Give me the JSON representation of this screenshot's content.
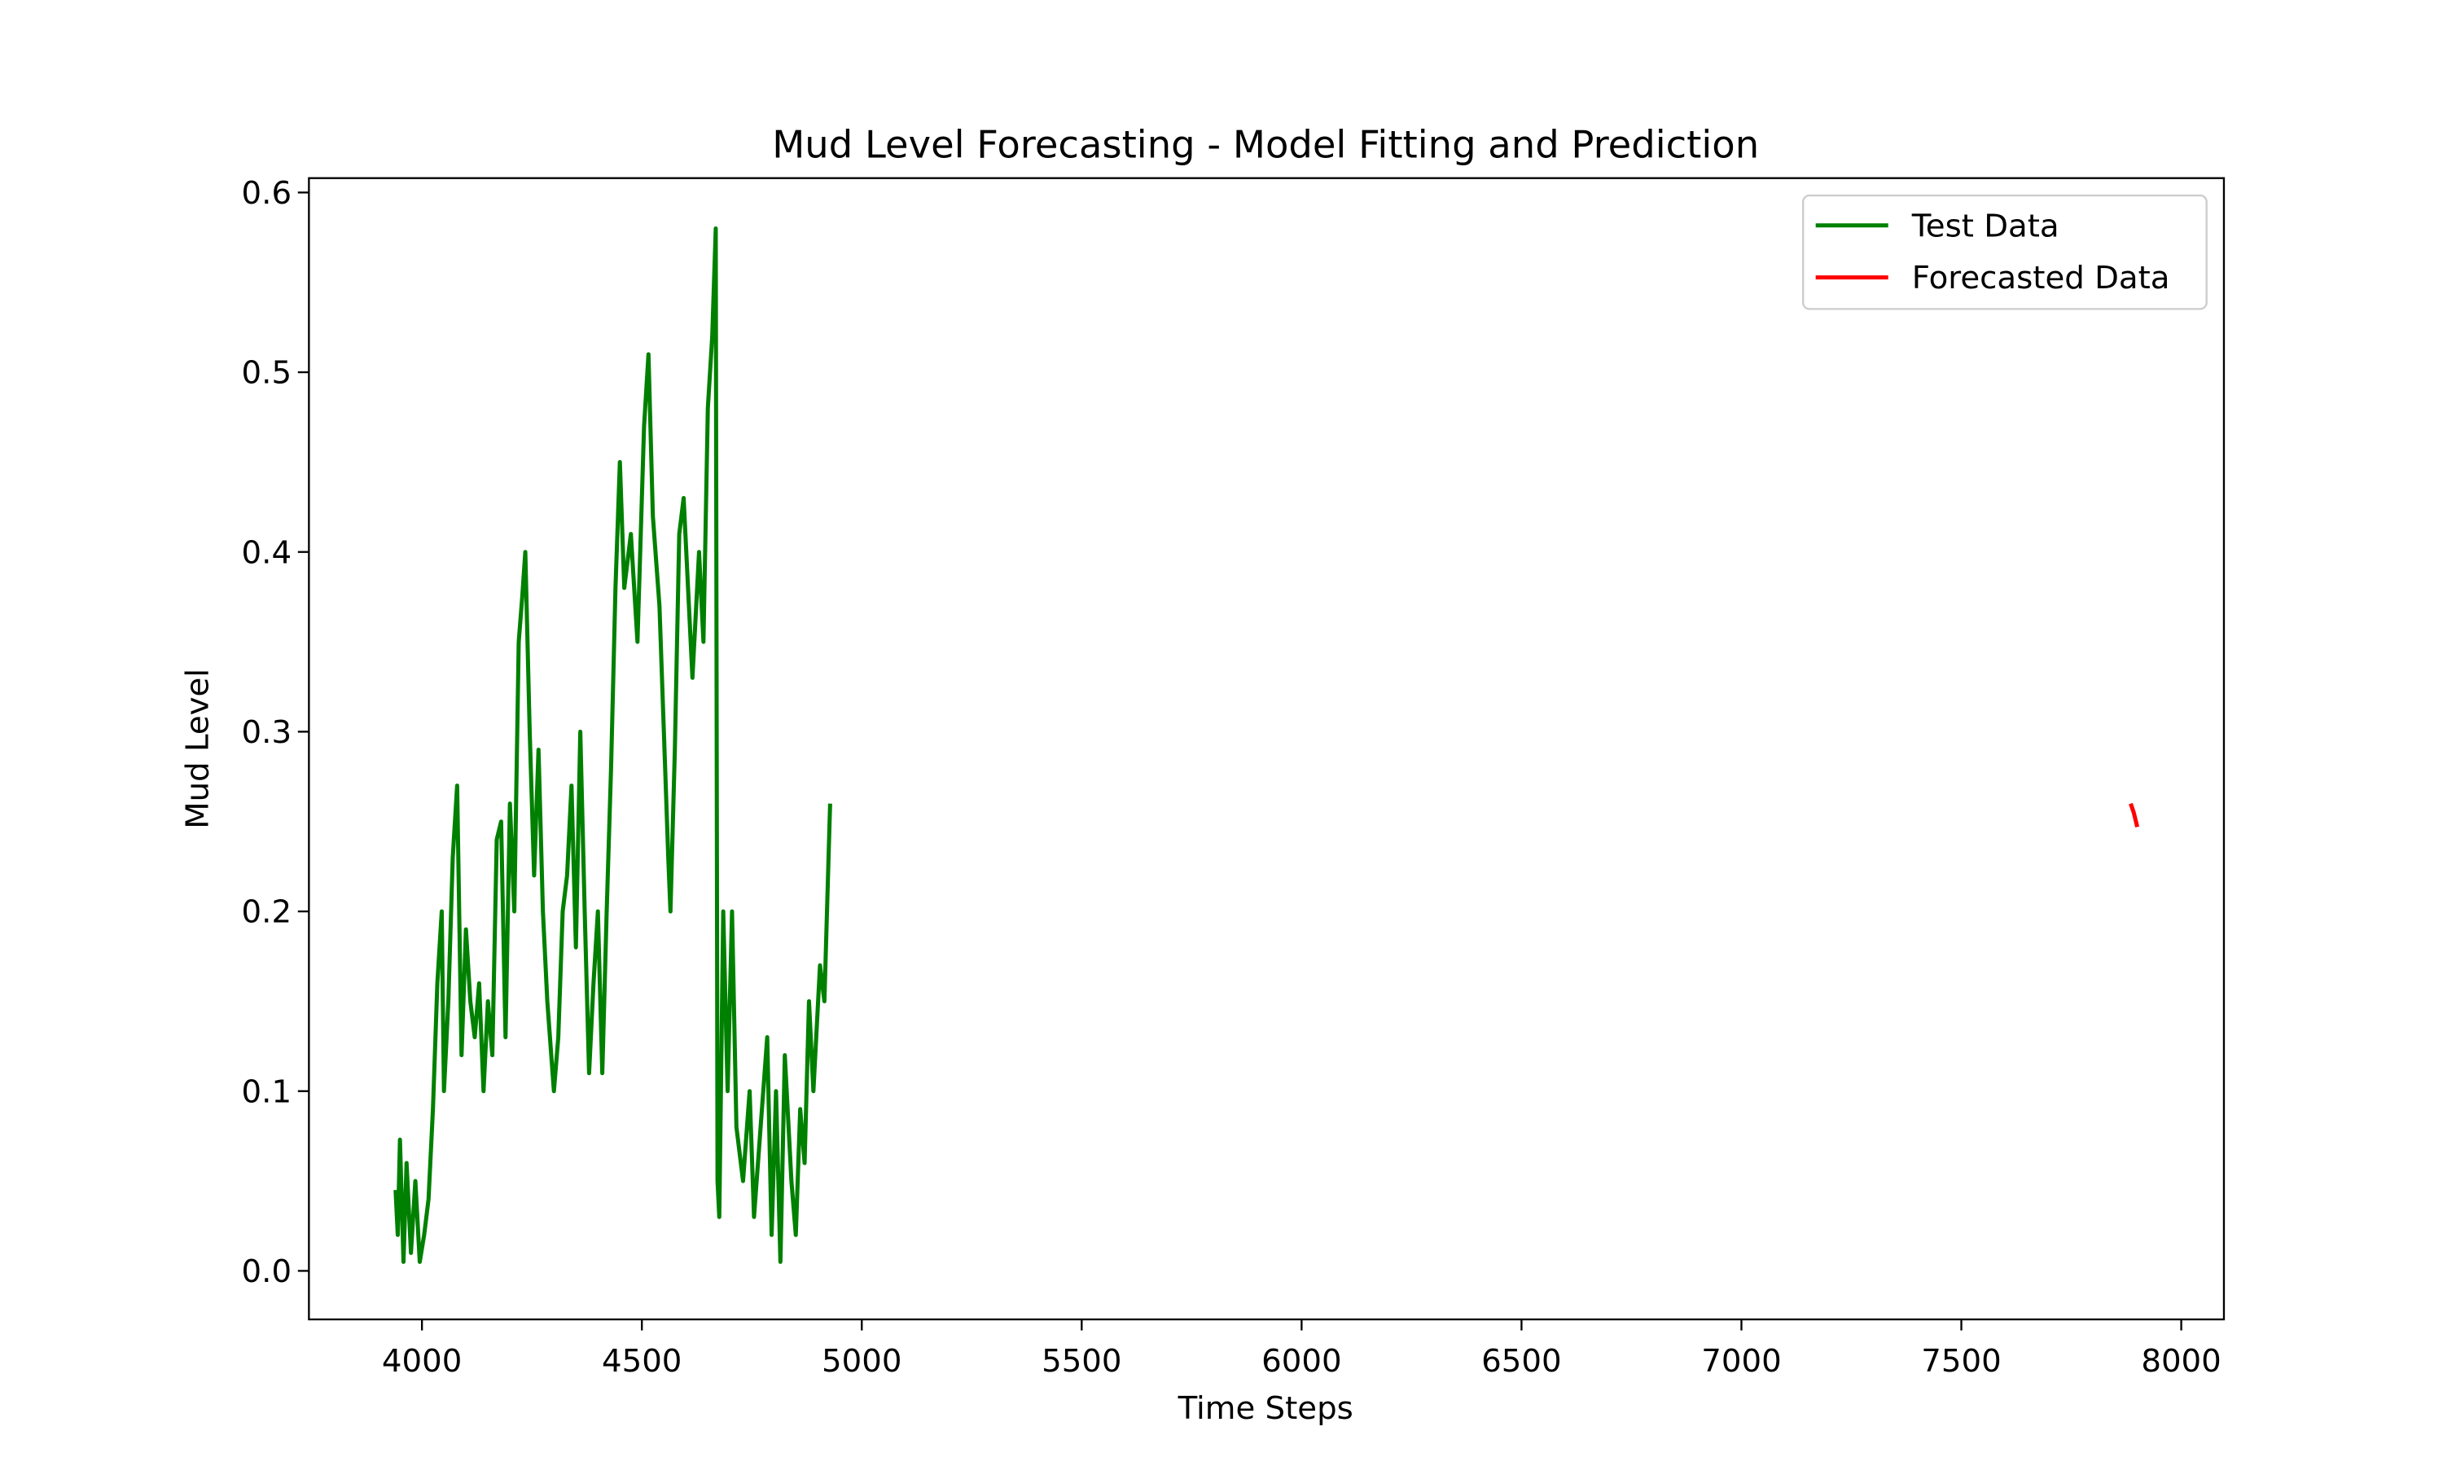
{
  "chart_data": {
    "type": "line",
    "title": "Mud Level Forecasting - Model Fitting and Prediction",
    "xlabel": "Time Steps",
    "ylabel": "Mud Level",
    "xlim": [
      3743,
      8097
    ],
    "ylim": [
      -0.027,
      0.608
    ],
    "xticks": [
      4000,
      4500,
      5000,
      5500,
      6000,
      6500,
      7000,
      7500,
      8000
    ],
    "yticks": [
      {
        "value": 0,
        "label": "0.0"
      },
      0.1,
      0.2,
      0.3,
      0.4,
      0.5,
      0.6
    ],
    "legend": "upper right",
    "series": [
      {
        "name": "Test Data",
        "color": "#008000",
        "x": [
          3940,
          3945,
          3950,
          3958,
          3965,
          3975,
          3985,
          3995,
          4005,
          4015,
          4025,
          4035,
          4045,
          4050,
          4060,
          4070,
          4080,
          4090,
          4100,
          4110,
          4120,
          4130,
          4140,
          4150,
          4160,
          4170,
          4180,
          4190,
          4200,
          4210,
          4220,
          4228,
          4235,
          4245,
          4255,
          4265,
          4275,
          4285,
          4300,
          4310,
          4320,
          4330,
          4340,
          4350,
          4360,
          4370,
          4380,
          4390,
          4400,
          4410,
          4420,
          4430,
          4440,
          4450,
          4460,
          4475,
          4490,
          4505,
          4515,
          4525,
          4540,
          4550,
          4560,
          4565,
          4575,
          4585,
          4595,
          4605,
          4615,
          4630,
          4640,
          4650,
          4660,
          4668,
          4672,
          4676,
          4685,
          4695,
          4705,
          4715,
          4730,
          4745,
          4755,
          4770,
          4785,
          4795,
          4805,
          4815,
          4825,
          4840,
          4850,
          4860,
          4870,
          4880,
          4890,
          4905,
          4915,
          4928
        ],
        "values": [
          0.045,
          0.02,
          0.073,
          0.005,
          0.06,
          0.01,
          0.05,
          0.005,
          0.02,
          0.04,
          0.09,
          0.16,
          0.2,
          0.1,
          0.15,
          0.23,
          0.27,
          0.12,
          0.19,
          0.15,
          0.13,
          0.16,
          0.1,
          0.15,
          0.12,
          0.24,
          0.25,
          0.13,
          0.26,
          0.2,
          0.35,
          0.375,
          0.4,
          0.3,
          0.22,
          0.29,
          0.2,
          0.15,
          0.1,
          0.13,
          0.2,
          0.22,
          0.27,
          0.18,
          0.3,
          0.2,
          0.11,
          0.16,
          0.2,
          0.11,
          0.2,
          0.28,
          0.38,
          0.45,
          0.38,
          0.41,
          0.35,
          0.47,
          0.51,
          0.42,
          0.37,
          0.3,
          0.23,
          0.2,
          0.29,
          0.41,
          0.43,
          0.38,
          0.33,
          0.4,
          0.35,
          0.48,
          0.52,
          0.58,
          0.05,
          0.03,
          0.2,
          0.1,
          0.2,
          0.08,
          0.05,
          0.1,
          0.03,
          0.08,
          0.13,
          0.02,
          0.1,
          0.005,
          0.12,
          0.05,
          0.02,
          0.09,
          0.06,
          0.15,
          0.1,
          0.17,
          0.15,
          0.26
        ]
      },
      {
        "name": "Forecasted Data",
        "color": "#ff0000",
        "x": [
          7885,
          7892,
          7900
        ],
        "values": [
          0.26,
          0.255,
          0.247
        ]
      }
    ]
  }
}
